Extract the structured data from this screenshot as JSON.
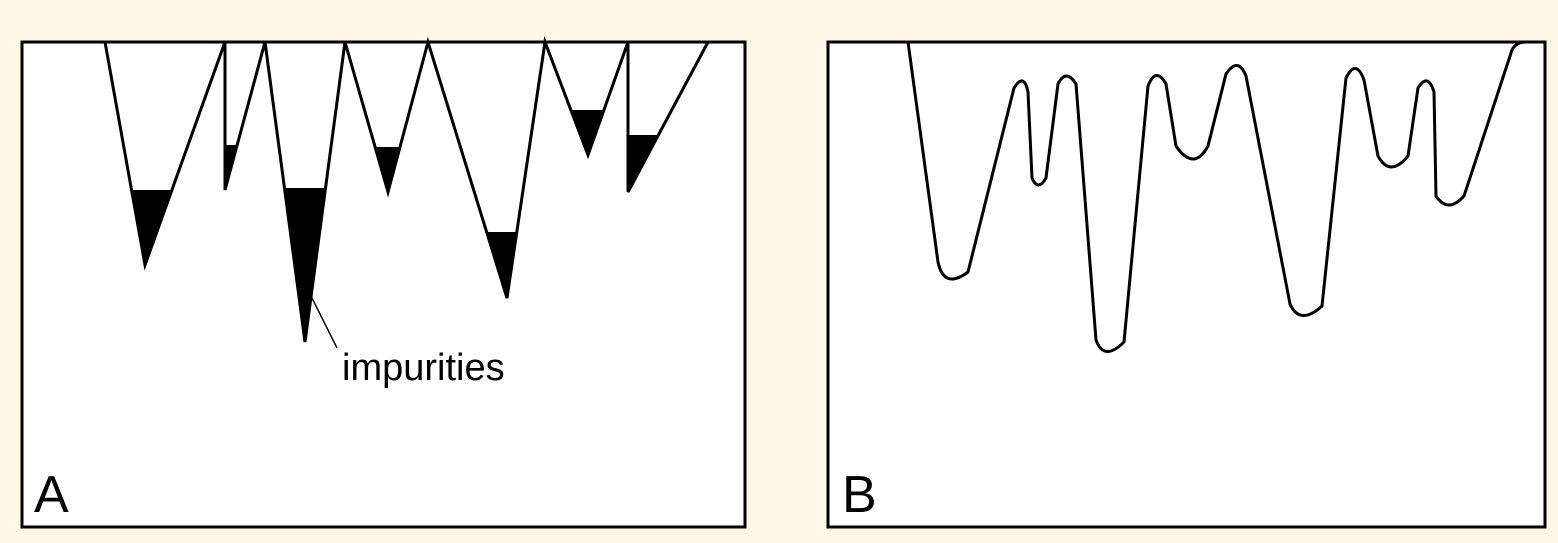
{
  "panels": [
    {
      "label": "A"
    },
    {
      "label": "B"
    }
  ],
  "annotation": "impurities"
}
